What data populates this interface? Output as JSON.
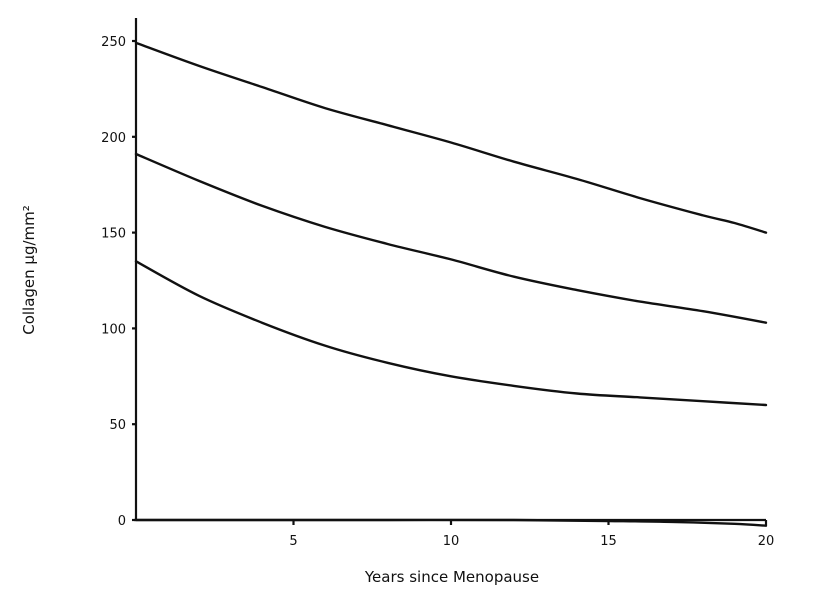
{
  "chart_data": {
    "type": "line",
    "title": "",
    "xlabel": "Years since Menopause",
    "ylabel": "Collagen µg/mm²",
    "xlim": [
      0,
      20
    ],
    "ylim": [
      0,
      250
    ],
    "xticks": [
      5,
      10,
      15,
      20
    ],
    "yticks": [
      0,
      50,
      100,
      150,
      200,
      250
    ],
    "grid": false,
    "series": [
      {
        "x": [
          0,
          2,
          4,
          6,
          8,
          10,
          12,
          14,
          16,
          18,
          19,
          20
        ],
        "y": [
          249,
          237,
          226,
          215,
          206,
          197,
          187,
          178,
          168,
          159,
          155,
          150
        ]
      },
      {
        "x": [
          0,
          2,
          4,
          6,
          8,
          10,
          12,
          14,
          16,
          18,
          20
        ],
        "y": [
          191,
          177,
          164,
          153,
          144,
          136,
          127,
          120,
          114,
          109,
          103
        ]
      },
      {
        "x": [
          0,
          2,
          4,
          6,
          8,
          10,
          12,
          14,
          16,
          18,
          20
        ],
        "y": [
          135,
          117,
          103,
          91,
          82,
          75,
          70,
          66,
          64,
          62,
          60
        ]
      },
      {
        "x": [
          0,
          4,
          8,
          12,
          15,
          17,
          19,
          20
        ],
        "y": [
          0,
          0,
          0,
          0,
          -0.5,
          -1,
          -2,
          -3
        ]
      }
    ]
  }
}
